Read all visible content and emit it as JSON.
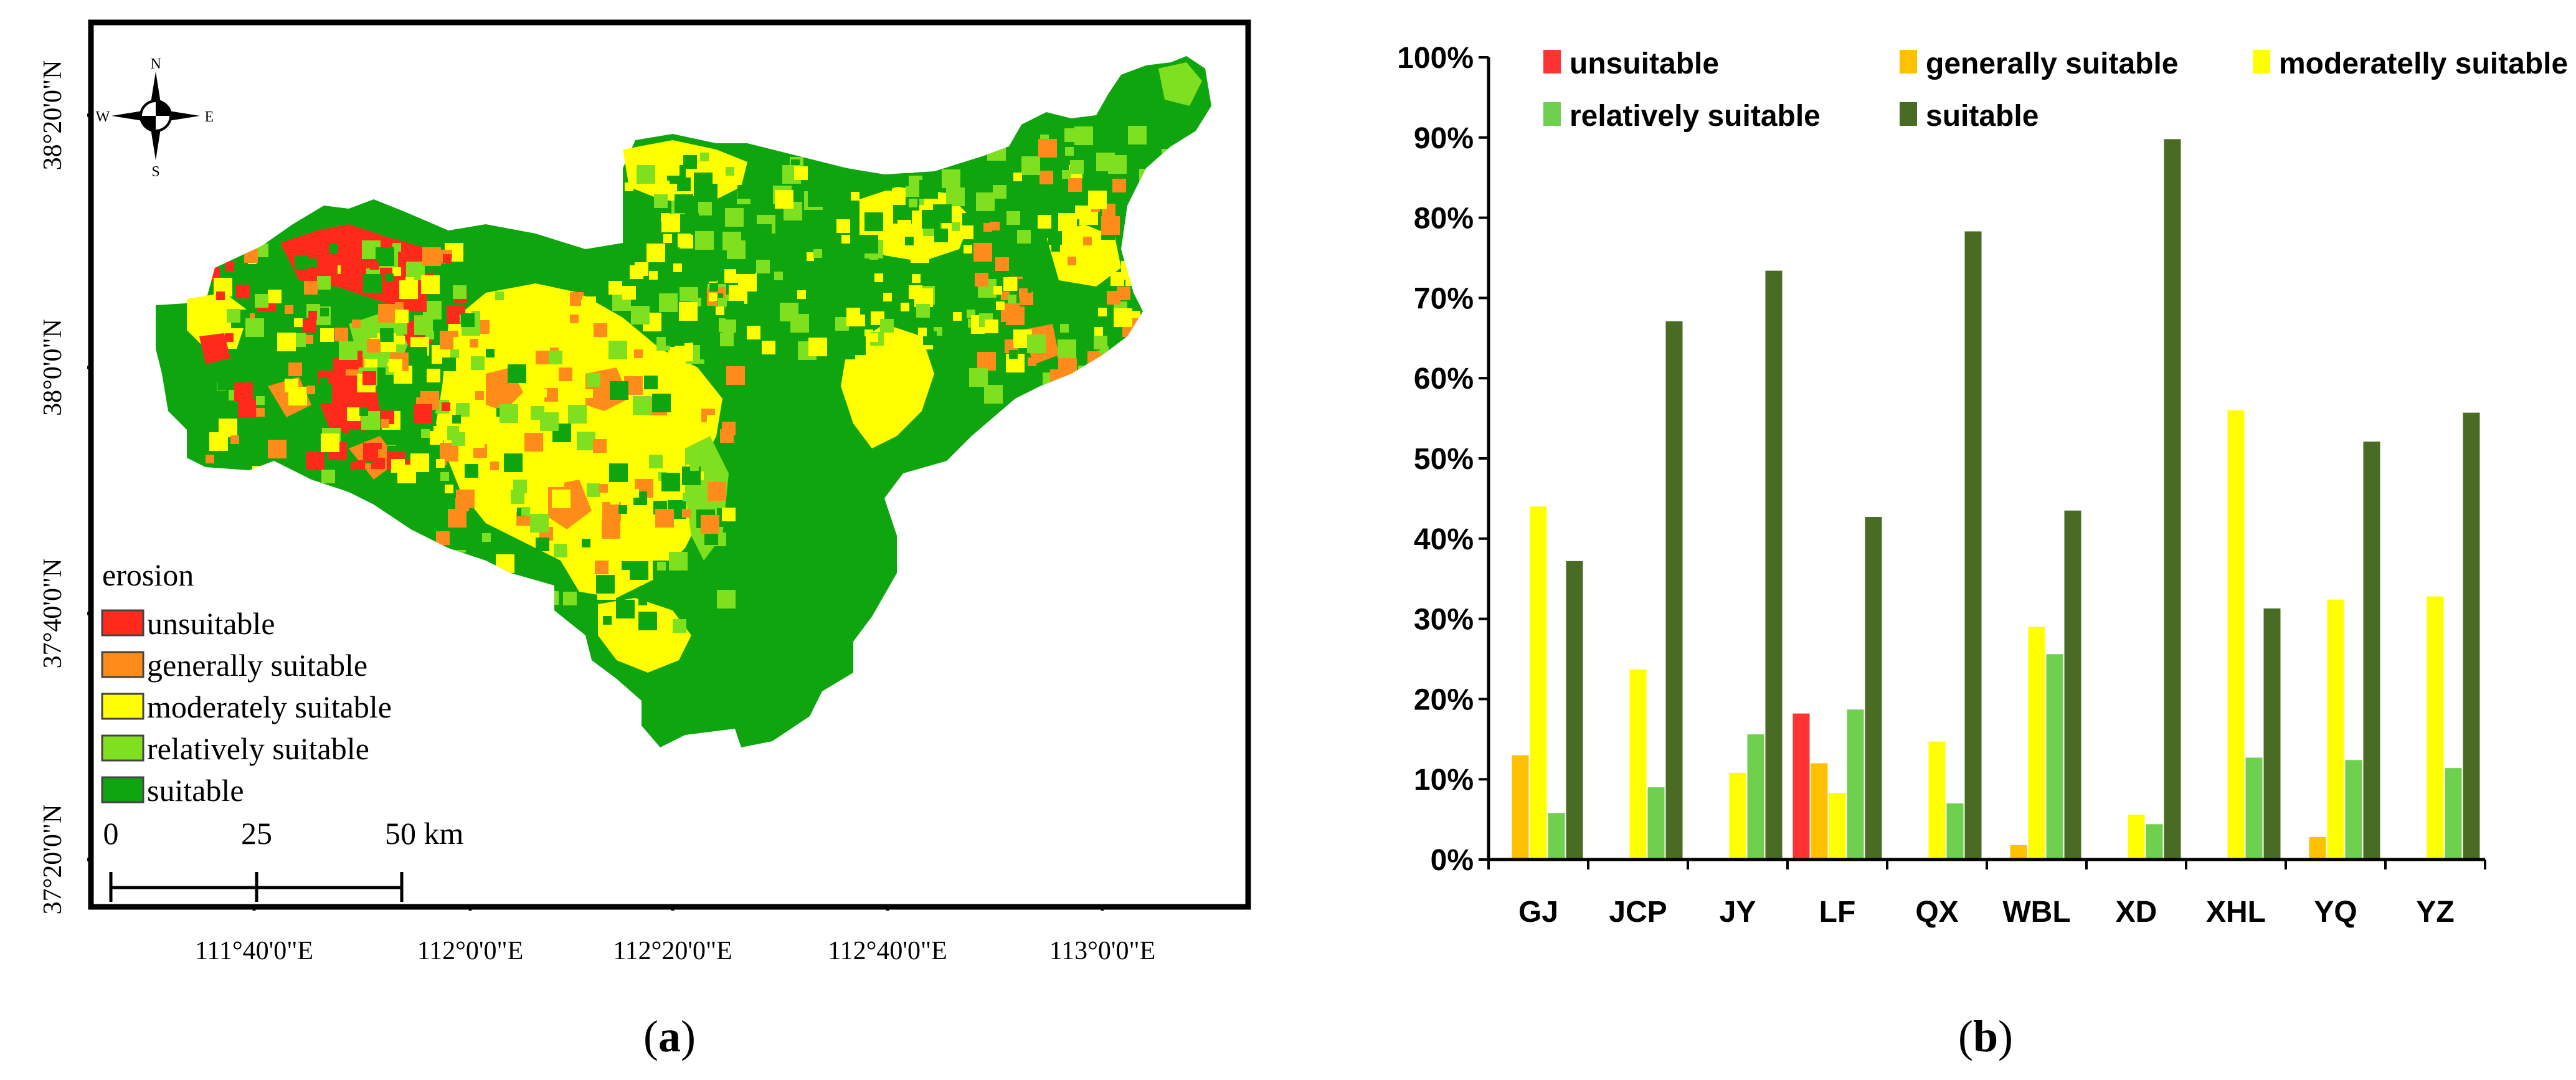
{
  "map_panel": {
    "caption_pre": "(",
    "caption_letter": "a",
    "caption_post": ")",
    "compass": {
      "north": "N",
      "south": "S",
      "east": "E",
      "west": "W"
    },
    "lat_labels": [
      "38°20'0\"N",
      "38°0'0\"N",
      "37°40'0\"N",
      "37°20'0\"N"
    ],
    "lon_labels": [
      "111°40'0\"E",
      "112°0'0\"E",
      "112°20'0\"E",
      "112°40'0\"E",
      "113°0'0\"E"
    ],
    "legend": {
      "title": "erosion",
      "items": [
        {
          "label": "unsuitable",
          "color": "#ff2a1a"
        },
        {
          "label": "generally suitable",
          "color": "#ff8c1a"
        },
        {
          "label": "moderately suitable",
          "color": "#ffff00"
        },
        {
          "label": "relatively suitable",
          "color": "#7ee01e"
        },
        {
          "label": "suitable",
          "color": "#0ea50e"
        }
      ]
    },
    "scale_bar": {
      "ticks": [
        "0",
        "25",
        "50 km"
      ]
    },
    "map_colors": {
      "suitable": "#0ea50e",
      "relatively": "#7ee01e",
      "moderately": "#ffff00",
      "generally": "#ff8c1a",
      "unsuitable": "#ff2a1a"
    }
  },
  "bar_panel": {
    "caption_pre": "(",
    "caption_letter": "b",
    "caption_post": ")"
  },
  "chart_data": {
    "type": "bar",
    "title": "",
    "xlabel": "",
    "ylabel": "",
    "ylim": [
      0,
      100
    ],
    "y_ticks": [
      "0%",
      "10%",
      "20%",
      "30%",
      "40%",
      "50%",
      "60%",
      "70%",
      "80%",
      "90%",
      "100%"
    ],
    "categories": [
      "GJ",
      "JCP",
      "JY",
      "LF",
      "QX",
      "WBL",
      "XD",
      "XHL",
      "YQ",
      "YZ"
    ],
    "legend_position": "top",
    "grid": false,
    "series": [
      {
        "name": "unsuitable",
        "color": "#ff3333",
        "values": [
          0,
          0,
          0,
          18.2,
          0,
          0,
          0,
          0,
          0,
          0
        ]
      },
      {
        "name": "generally suitable",
        "color": "#ffc000",
        "values": [
          13.0,
          0,
          0,
          12.0,
          0,
          1.8,
          0,
          0,
          2.8,
          0
        ]
      },
      {
        "name": "moderatelly suitable",
        "color": "#ffff00",
        "values": [
          44.0,
          23.7,
          10.8,
          8.3,
          14.7,
          29.0,
          5.6,
          56.0,
          32.4,
          32.8
        ]
      },
      {
        "name": "relatively suitable",
        "color": "#6fcf4f",
        "values": [
          5.8,
          9.0,
          15.6,
          18.7,
          7.0,
          25.6,
          4.4,
          12.7,
          12.4,
          11.4
        ]
      },
      {
        "name": "suitable",
        "color": "#4a6b24",
        "values": [
          37.2,
          67.1,
          73.4,
          42.7,
          78.3,
          43.5,
          89.8,
          31.3,
          52.1,
          55.7
        ]
      }
    ]
  }
}
